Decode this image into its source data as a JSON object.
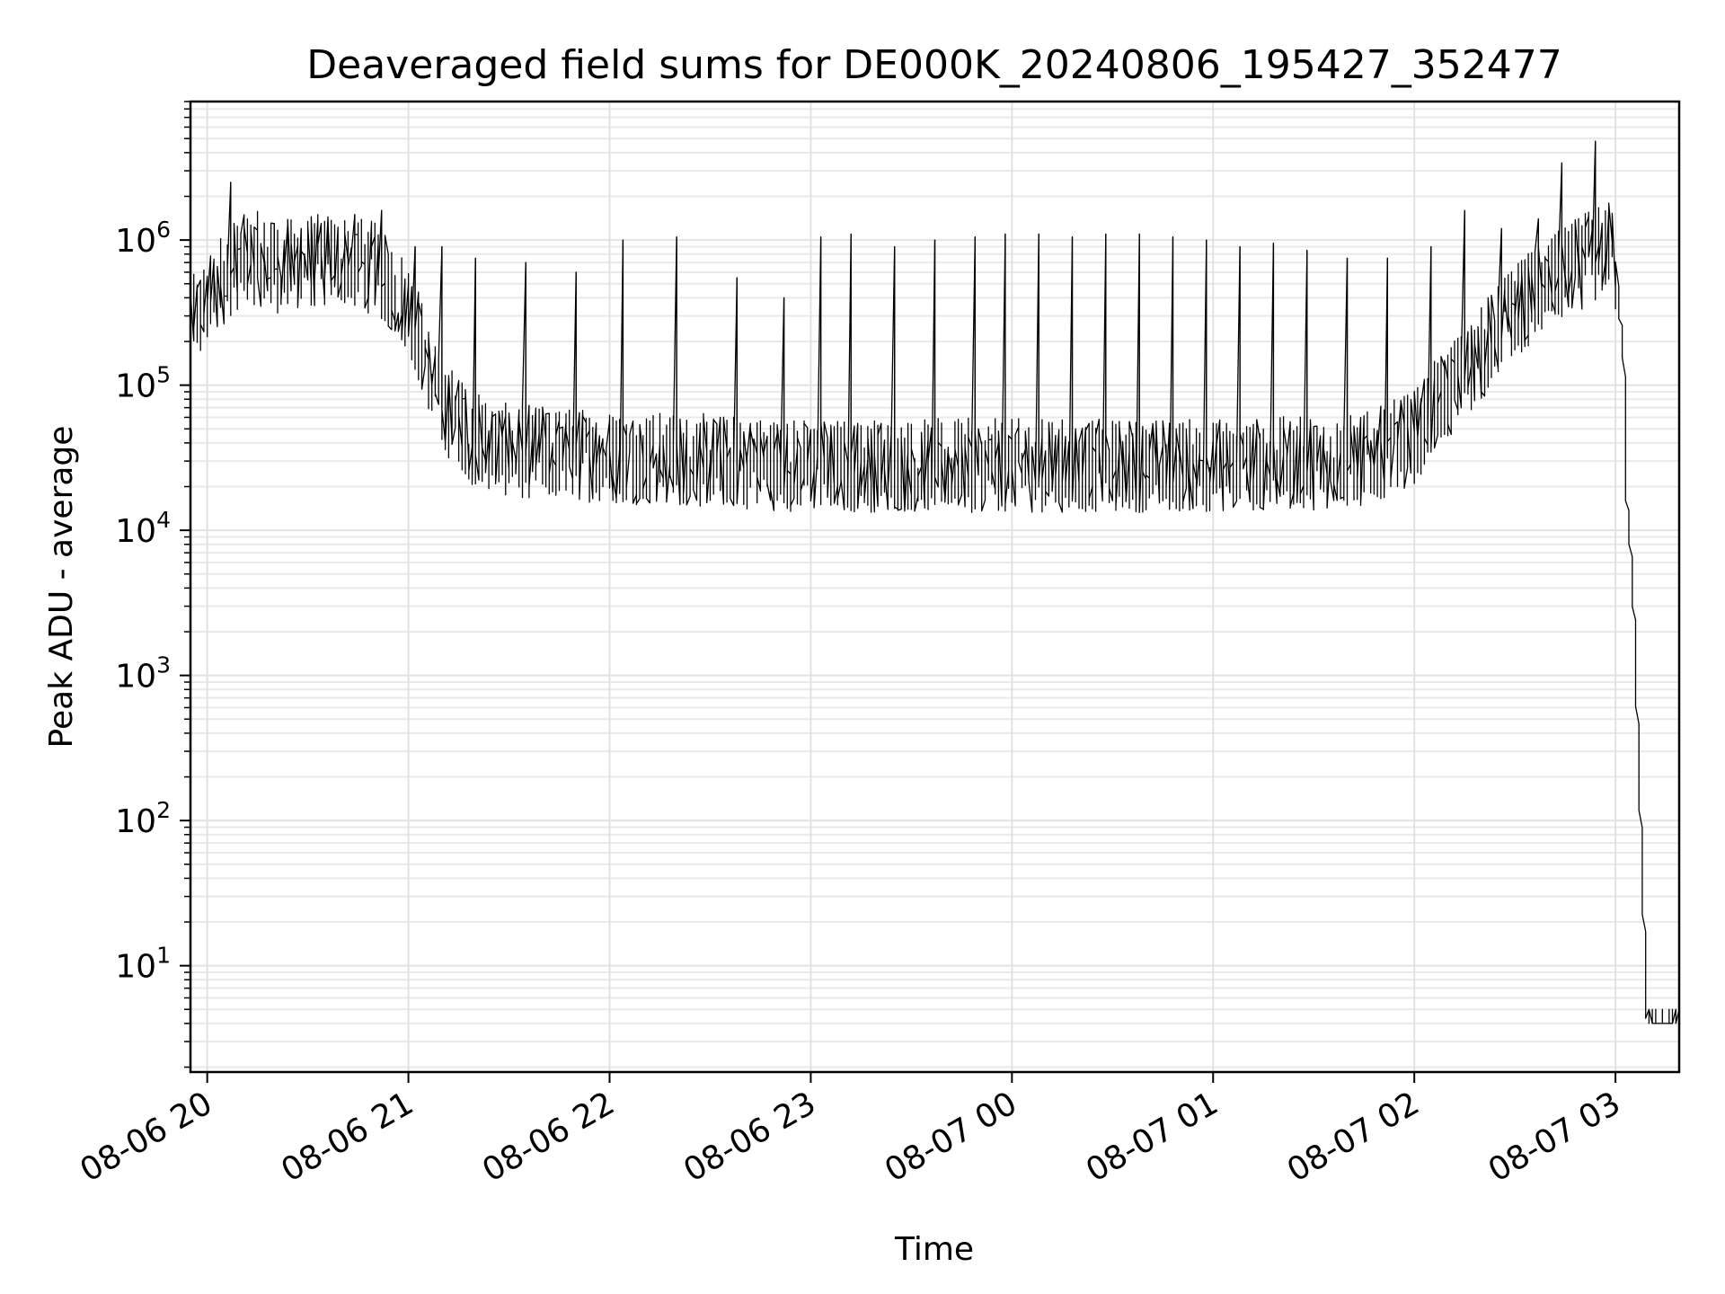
{
  "chart_data": {
    "type": "line",
    "title": "Deaveraged field sums for DE000K_20240806_195427_352477",
    "xlabel": "Time",
    "ylabel": "Peak ADU - average",
    "yscale": "log",
    "grid": true,
    "xlim": [
      "2024-08-06T19:55",
      "2024-08-07T03:19"
    ],
    "ylim": [
      1.85,
      9000000
    ],
    "x_ticks": [
      {
        "value": "2024-08-06T20:00",
        "label": "08-06 20"
      },
      {
        "value": "2024-08-06T21:00",
        "label": "08-06 21"
      },
      {
        "value": "2024-08-06T22:00",
        "label": "08-06 22"
      },
      {
        "value": "2024-08-06T23:00",
        "label": "08-06 23"
      },
      {
        "value": "2024-08-07T00:00",
        "label": "08-07 00"
      },
      {
        "value": "2024-08-07T01:00",
        "label": "08-07 01"
      },
      {
        "value": "2024-08-07T02:00",
        "label": "08-07 02"
      },
      {
        "value": "2024-08-07T03:00",
        "label": "08-07 03"
      }
    ],
    "y_ticks": [
      {
        "value": 10,
        "base": "10",
        "exp": "1"
      },
      {
        "value": 100,
        "base": "10",
        "exp": "2"
      },
      {
        "value": 1000,
        "base": "10",
        "exp": "3"
      },
      {
        "value": 10000,
        "base": "10",
        "exp": "4"
      },
      {
        "value": 100000,
        "base": "10",
        "exp": "5"
      },
      {
        "value": 1000000,
        "base": "10",
        "exp": "6"
      }
    ],
    "series": [
      {
        "color": "#000000",
        "x": [
          "2024-08-06T19:55",
          "2024-08-06T19:58",
          "2024-08-06T20:00",
          "2024-08-06T20:03",
          "2024-08-06T20:05",
          "2024-08-06T20:10",
          "2024-08-06T20:15",
          "2024-08-06T20:20",
          "2024-08-06T20:30",
          "2024-08-06T20:40",
          "2024-08-06T20:50",
          "2024-08-06T21:00",
          "2024-08-06T21:10",
          "2024-08-06T21:20",
          "2024-08-06T21:30",
          "2024-08-06T21:40",
          "2024-08-06T22:00",
          "2024-08-06T22:30",
          "2024-08-06T23:00",
          "2024-08-06T23:30",
          "2024-08-07T00:00",
          "2024-08-07T00:30",
          "2024-08-07T01:00",
          "2024-08-07T01:30",
          "2024-08-07T01:45",
          "2024-08-07T02:00",
          "2024-08-07T02:10",
          "2024-08-07T02:20",
          "2024-08-07T02:30",
          "2024-08-07T02:40",
          "2024-08-07T02:50",
          "2024-08-07T03:00",
          "2024-08-07T03:01",
          "2024-08-07T03:03",
          "2024-08-07T03:04",
          "2024-08-07T03:05",
          "2024-08-07T03:06",
          "2024-08-07T03:08",
          "2024-08-07T03:10",
          "2024-08-07T03:11",
          "2024-08-07T03:19"
        ],
        "y": [
          320000,
          280000,
          320000,
          420000,
          500000,
          650000,
          700000,
          600000,
          650000,
          700000,
          600000,
          350000,
          70000,
          40000,
          33000,
          32000,
          30000,
          28000,
          26000,
          26000,
          26000,
          26000,
          26000,
          27000,
          28000,
          40000,
          80000,
          150000,
          300000,
          450000,
          650000,
          850000,
          500000,
          150000,
          15000,
          8000,
          2500,
          100,
          4,
          4,
          4
        ],
        "spikes": [
          {
            "x": "2024-08-06T20:07",
            "y": 2500000
          },
          {
            "x": "2024-08-06T20:20",
            "y": 1300000
          },
          {
            "x": "2024-08-06T20:28",
            "y": 1200000
          },
          {
            "x": "2024-08-06T20:36",
            "y": 1400000
          },
          {
            "x": "2024-08-06T20:44",
            "y": 1500000
          },
          {
            "x": "2024-08-06T20:52",
            "y": 1600000
          },
          {
            "x": "2024-08-06T21:02",
            "y": 900000
          },
          {
            "x": "2024-08-06T21:10",
            "y": 900000
          },
          {
            "x": "2024-08-06T21:20",
            "y": 750000
          },
          {
            "x": "2024-08-06T21:35",
            "y": 700000
          },
          {
            "x": "2024-08-06T21:50",
            "y": 600000
          },
          {
            "x": "2024-08-06T22:04",
            "y": 1000000
          },
          {
            "x": "2024-08-06T22:20",
            "y": 1050000
          },
          {
            "x": "2024-08-06T22:38",
            "y": 550000
          },
          {
            "x": "2024-08-06T22:52",
            "y": 400000
          },
          {
            "x": "2024-08-06T23:03",
            "y": 1050000
          },
          {
            "x": "2024-08-06T23:12",
            "y": 1100000
          },
          {
            "x": "2024-08-06T23:25",
            "y": 900000
          },
          {
            "x": "2024-08-06T23:37",
            "y": 1000000
          },
          {
            "x": "2024-08-06T23:49",
            "y": 1050000
          },
          {
            "x": "2024-08-06T23:58",
            "y": 1100000
          },
          {
            "x": "2024-08-07T00:08",
            "y": 1100000
          },
          {
            "x": "2024-08-07T00:18",
            "y": 1050000
          },
          {
            "x": "2024-08-07T00:28",
            "y": 1100000
          },
          {
            "x": "2024-08-07T00:38",
            "y": 1100000
          },
          {
            "x": "2024-08-07T00:48",
            "y": 1050000
          },
          {
            "x": "2024-08-07T00:58",
            "y": 1000000
          },
          {
            "x": "2024-08-07T01:08",
            "y": 900000
          },
          {
            "x": "2024-08-07T01:18",
            "y": 950000
          },
          {
            "x": "2024-08-07T01:28",
            "y": 850000
          },
          {
            "x": "2024-08-07T01:40",
            "y": 750000
          },
          {
            "x": "2024-08-07T01:52",
            "y": 750000
          },
          {
            "x": "2024-08-07T02:05",
            "y": 900000
          },
          {
            "x": "2024-08-07T02:15",
            "y": 1600000
          },
          {
            "x": "2024-08-07T02:26",
            "y": 1200000
          },
          {
            "x": "2024-08-07T02:37",
            "y": 1400000
          },
          {
            "x": "2024-08-07T02:44",
            "y": 3400000
          },
          {
            "x": "2024-08-07T02:54",
            "y": 4800000
          }
        ]
      }
    ]
  }
}
